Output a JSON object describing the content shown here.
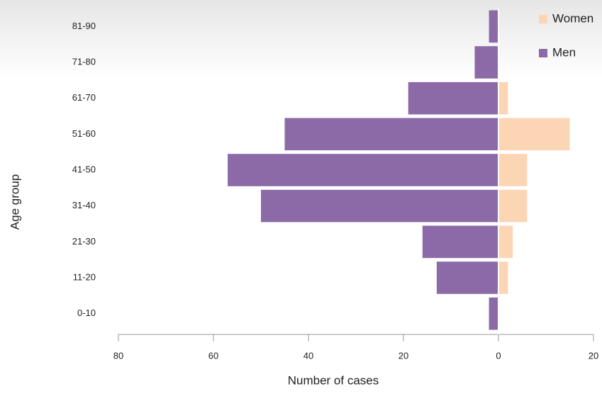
{
  "chart_data": {
    "type": "pyramid",
    "y_label": "Age group",
    "x_label": "Number of cases",
    "categories": [
      "0-10",
      "11-20",
      "21-30",
      "31-40",
      "41-50",
      "51-60",
      "61-70",
      "71-80",
      "81-90"
    ],
    "series": [
      {
        "name": "Women",
        "color": "#fcd5b5",
        "values": [
          0,
          2,
          3,
          6,
          6,
          15,
          2,
          0,
          0
        ]
      },
      {
        "name": "Men",
        "color": "#8b6aa7",
        "values": [
          -2,
          -13,
          -16,
          -50,
          -57,
          -45,
          -19,
          -5,
          -2
        ]
      }
    ],
    "xlim": [
      -80,
      20
    ],
    "xticks": [
      {
        "value": -80,
        "label": "80"
      },
      {
        "value": -60,
        "label": "60"
      },
      {
        "value": -40,
        "label": "40"
      },
      {
        "value": -20,
        "label": "20"
      },
      0,
      20
    ]
  }
}
